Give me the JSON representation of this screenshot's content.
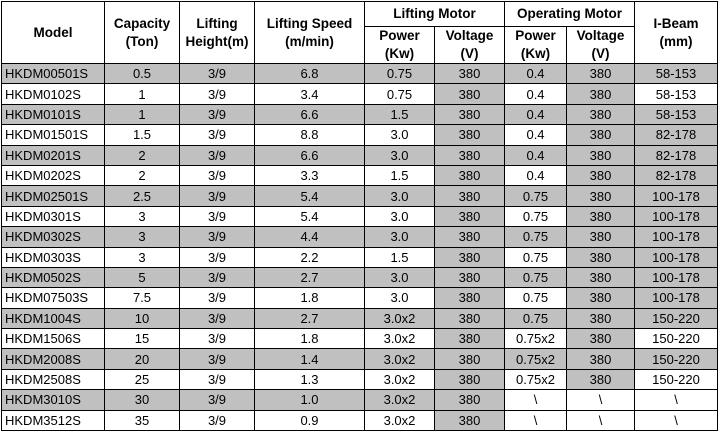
{
  "colors": {
    "shaded_cell": "#c0c0c0",
    "grid_border": "#000000",
    "text": "#000000",
    "background": "#ffffff"
  },
  "table": {
    "column_keys": [
      "model",
      "capacity",
      "lifting-height",
      "lifting-speed",
      "lifting-motor-power",
      "lifting-motor-voltage",
      "operating-motor-power",
      "operating-motor-voltage",
      "i-beam"
    ],
    "header": {
      "model": "Model",
      "capacity": "Capacity\n(Ton)",
      "lifting_height": "Lifting\nHeight(m)",
      "lifting_speed": "Lifting Speed\n(m/min)",
      "lifting_motor": "Lifting Motor",
      "operating_motor": "Operating Motor",
      "power": "Power\n(Kw)",
      "voltage": "Voltage\n(V)",
      "i_beam": "I-Beam\n(mm)"
    },
    "rows": [
      {
        "cells": [
          "HKDM00501S",
          "0.5",
          "3/9",
          "6.8",
          "0.75",
          "380",
          "0.4",
          "380",
          "58-153"
        ],
        "shaded": [
          1,
          1,
          1,
          1,
          1,
          1,
          1,
          1,
          1
        ]
      },
      {
        "cells": [
          "HKDM0102S",
          "1",
          "3/9",
          "3.4",
          "0.75",
          "380",
          "0.4",
          "380",
          "58-153"
        ],
        "shaded": [
          0,
          0,
          0,
          0,
          0,
          1,
          0,
          1,
          0
        ]
      },
      {
        "cells": [
          "HKDM0101S",
          "1",
          "3/9",
          "6.6",
          "1.5",
          "380",
          "0.4",
          "380",
          "58-153"
        ],
        "shaded": [
          1,
          1,
          1,
          1,
          1,
          1,
          1,
          1,
          1
        ]
      },
      {
        "cells": [
          "HKDM01501S",
          "1.5",
          "3/9",
          "8.8",
          "3.0",
          "380",
          "0.4",
          "380",
          "82-178"
        ],
        "shaded": [
          0,
          0,
          0,
          0,
          0,
          1,
          0,
          1,
          1
        ]
      },
      {
        "cells": [
          "HKDM0201S",
          "2",
          "3/9",
          "6.6",
          "3.0",
          "380",
          "0.4",
          "380",
          "82-178"
        ],
        "shaded": [
          1,
          1,
          1,
          1,
          1,
          1,
          1,
          1,
          1
        ]
      },
      {
        "cells": [
          "HKDM0202S",
          "2",
          "3/9",
          "3.3",
          "1.5",
          "380",
          "0.4",
          "380",
          "82-178"
        ],
        "shaded": [
          0,
          0,
          0,
          0,
          0,
          1,
          0,
          1,
          1
        ]
      },
      {
        "cells": [
          "HKDM02501S",
          "2.5",
          "3/9",
          "5.4",
          "3.0",
          "380",
          "0.75",
          "380",
          "100-178"
        ],
        "shaded": [
          1,
          1,
          1,
          1,
          1,
          1,
          1,
          1,
          1
        ]
      },
      {
        "cells": [
          "HKDM0301S",
          "3",
          "3/9",
          "5.4",
          "3.0",
          "380",
          "0.75",
          "380",
          "100-178"
        ],
        "shaded": [
          0,
          0,
          0,
          0,
          0,
          1,
          0,
          1,
          1
        ]
      },
      {
        "cells": [
          "HKDM0302S",
          "3",
          "3/9",
          "4.4",
          "3.0",
          "380",
          "0.75",
          "380",
          "100-178"
        ],
        "shaded": [
          1,
          1,
          1,
          1,
          1,
          1,
          1,
          1,
          1
        ]
      },
      {
        "cells": [
          "HKDM0303S",
          "3",
          "3/9",
          "2.2",
          "1.5",
          "380",
          "0.75",
          "380",
          "100-178"
        ],
        "shaded": [
          0,
          0,
          0,
          0,
          0,
          1,
          0,
          1,
          1
        ]
      },
      {
        "cells": [
          "HKDM0502S",
          "5",
          "3/9",
          "2.7",
          "3.0",
          "380",
          "0.75",
          "380",
          "100-178"
        ],
        "shaded": [
          1,
          1,
          1,
          1,
          1,
          1,
          1,
          1,
          1
        ]
      },
      {
        "cells": [
          "HKDM07503S",
          "7.5",
          "3/9",
          "1.8",
          "3.0",
          "380",
          "0.75",
          "380",
          "100-178"
        ],
        "shaded": [
          0,
          0,
          0,
          0,
          0,
          1,
          0,
          1,
          1
        ]
      },
      {
        "cells": [
          "HKDM1004S",
          "10",
          "3/9",
          "2.7",
          "3.0x2",
          "380",
          "0.75",
          "380",
          "150-220"
        ],
        "shaded": [
          1,
          1,
          1,
          1,
          1,
          1,
          1,
          1,
          1
        ]
      },
      {
        "cells": [
          "HKDM1506S",
          "15",
          "3/9",
          "1.8",
          "3.0x2",
          "380",
          "0.75x2",
          "380",
          "150-220"
        ],
        "shaded": [
          0,
          0,
          0,
          0,
          0,
          1,
          0,
          1,
          0
        ]
      },
      {
        "cells": [
          "HKDM2008S",
          "20",
          "3/9",
          "1.4",
          "3.0x2",
          "380",
          "0.75x2",
          "380",
          "150-220"
        ],
        "shaded": [
          1,
          1,
          1,
          1,
          1,
          1,
          1,
          1,
          1
        ]
      },
      {
        "cells": [
          "HKDM2508S",
          "25",
          "3/9",
          "1.3",
          "3.0x2",
          "380",
          "0.75x2",
          "380",
          "150-220"
        ],
        "shaded": [
          0,
          0,
          0,
          0,
          0,
          1,
          0,
          1,
          0
        ]
      },
      {
        "cells": [
          "HKDM3010S",
          "30",
          "3/9",
          "1.0",
          "3.0x2",
          "380",
          "\\",
          "\\",
          "\\"
        ],
        "shaded": [
          1,
          1,
          1,
          1,
          1,
          1,
          0,
          0,
          0
        ]
      },
      {
        "cells": [
          "HKDM3512S",
          "35",
          "3/9",
          "0.9",
          "3.0x2",
          "380",
          "\\",
          "\\",
          "\\"
        ],
        "shaded": [
          0,
          0,
          0,
          0,
          0,
          1,
          0,
          0,
          0
        ]
      }
    ]
  }
}
